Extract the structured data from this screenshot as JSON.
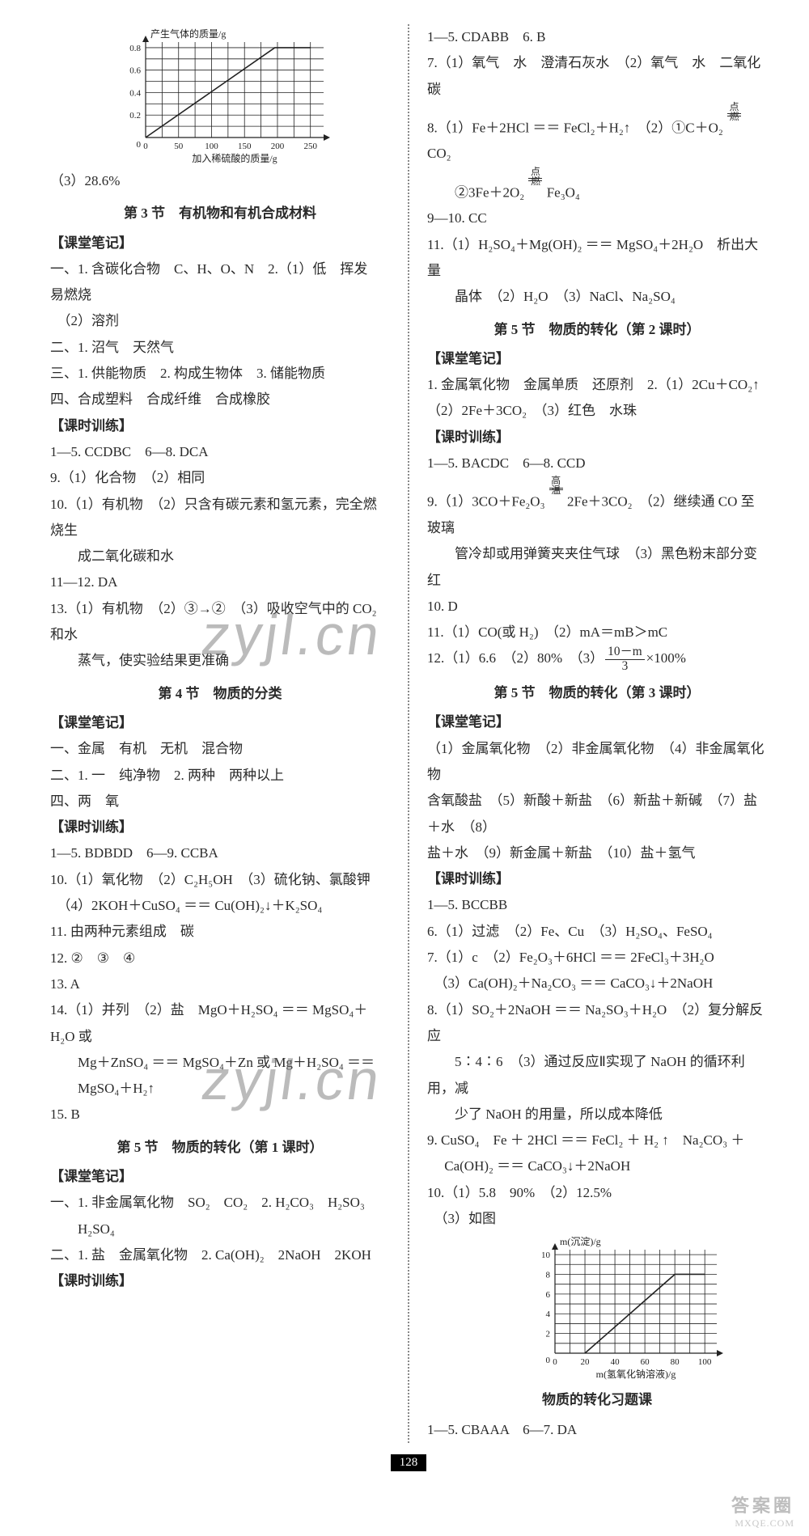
{
  "page_number": "128",
  "watermark_text": "zyjl.cn",
  "footer": {
    "line1": "答案圈",
    "line2": "MXQE.COM"
  },
  "chart_top": {
    "type": "line",
    "x_label": "加入稀硫酸的质量/g",
    "y_label": "产生气体的质量/g",
    "x_ticks": [
      0,
      50,
      100,
      150,
      200,
      250
    ],
    "y_ticks": [
      0,
      0.2,
      0.4,
      0.6,
      0.8
    ],
    "xlim": [
      0,
      270
    ],
    "ylim": [
      0,
      0.85
    ],
    "grid_step_x": 25,
    "grid_step_y": 0.1,
    "points": [
      [
        0,
        0
      ],
      [
        196,
        0.8
      ],
      [
        250,
        0.8
      ]
    ],
    "line_color": "#222222",
    "grid_color": "#222222",
    "bg": "#ffffff",
    "font_size_ticks": 11,
    "font_size_label": 12
  },
  "chart_bottom": {
    "type": "line",
    "x_label": "m(氢氧化钠溶液)/g",
    "y_label": "m(沉淀)/g",
    "x_ticks": [
      0,
      20,
      40,
      60,
      80,
      100
    ],
    "y_ticks": [
      0,
      2,
      4,
      6,
      8,
      10
    ],
    "xlim": [
      0,
      108
    ],
    "ylim": [
      0,
      10.5
    ],
    "grid_step_x": 10,
    "grid_step_y": 1,
    "points": [
      [
        20,
        0
      ],
      [
        80,
        8
      ],
      [
        100,
        8
      ]
    ],
    "line_color": "#222222",
    "grid_color": "#222222",
    "bg": "#ffffff",
    "font_size_ticks": 11,
    "font_size_label": 12
  },
  "left": {
    "after_chart_line": "（3）28.6%",
    "s3_title": "第 3 节　有机物和有机合成材料",
    "notes_tag": "【课堂笔记】",
    "train_tag": "【课时训练】",
    "s3_notes": [
      "一、1. 含碳化合物　C、H、O、N　2.（1）低　挥发　易燃烧",
      "　（2）溶剂",
      "二、1. 沼气　天然气",
      "三、1. 供能物质　2. 构成生物体　3. 储能物质",
      "四、合成塑料　合成纤维　合成橡胶"
    ],
    "s3_train": [
      "1—5. CCDBC　6—8. DCA",
      "9.（1）化合物　（2）相同",
      "10.（1）有机物　（2）只含有碳元素和氢元素，完全燃烧生",
      "　　成二氧化碳和水",
      "11—12. DA",
      "13.（1）有机物　（2）③→②　（3）吸收空气中的 CO₂ 和水",
      "　　蒸气，使实验结果更准确"
    ],
    "s4_title": "第 4 节　物质的分类",
    "s4_notes": [
      "一、金属　有机　无机　混合物",
      "二、1. 一　纯净物　2. 两种　两种以上",
      "四、两　氧"
    ],
    "s4_train": [
      "1—5. BDBDD　6—9. CCBA",
      "10.（1）氧化物　（2）C₂H₅OH　（3）硫化钠、氯酸钾",
      "　（4）2KOH＋CuSO₄ ＝＝ Cu(OH)₂↓＋K₂SO₄",
      "11. 由两种元素组成　碳",
      "12. ②　③　④",
      "13. A",
      "14.（1）并列　（2）盐　MgO＋H₂SO₄ ＝＝ MgSO₄＋H₂O 或",
      "　　Mg＋ZnSO₄ ＝＝ MgSO₄＋Zn 或 Mg＋H₂SO₄ ＝＝",
      "　　MgSO₄＋H₂↑",
      "15. B"
    ],
    "s5a_title": "第 5 节　物质的转化（第 1 课时）",
    "s5a_notes": [
      "一、1. 非金属氧化物　SO₂　CO₂　2. H₂CO₃　H₂SO₃",
      "　　H₂SO₄",
      "二、1. 盐　金属氧化物　2. Ca(OH)₂　2NaOH　2KOH"
    ]
  },
  "right": {
    "pre": [
      "1—5. CDABB　6. B",
      "7.（1）氧气　水　澄清石灰水　（2）氧气　水　二氧化碳"
    ],
    "q8_prefix": "8.（1）Fe＋2HCl ＝＝ FeCl₂＋H₂↑　（2）①C＋O₂ ",
    "q8_cond1_top": "点燃",
    "q8_cond1_right": " CO₂",
    "q8_line2_pre": "　　②3Fe＋2O₂ ",
    "q8_cond2_top": "点燃",
    "q8_line2_post": " Fe₃O₄",
    "q910": "9—10. CC",
    "q11": [
      "11.（1）H₂SO₄＋Mg(OH)₂ ＝＝ MgSO₄＋2H₂O　析出大量",
      "　　晶体　（2）H₂O　（3）NaCl、Na₂SO₄"
    ],
    "s5b_title": "第 5 节　物质的转化（第 2 课时）",
    "s5b_notes": [
      "1. 金属氧化物　金属单质　还原剂　2.（1）2Cu＋CO₂↑",
      "（2）2Fe＋3CO₂　（3）红色　水珠"
    ],
    "s5b_train_head": "1—5. BACDC　6—8. CCD",
    "q9_pre": "9.（1）3CO＋Fe₂O₃ ",
    "q9_top": "高温",
    "q9_post": " 2Fe＋3CO₂　（2）继续通 CO 至玻璃",
    "q9_line2": "　　管冷却或用弹簧夹夹住气球　（3）黑色粉末部分变红",
    "q10": "10. D",
    "q11b": "11.（1）CO(或 H₂)　（2）mA＝mB＞mC",
    "q12_pre": "12.（1）6.6　（2）80%　（3）",
    "q12_frac_n": "10－m",
    "q12_frac_d": "3",
    "q12_post": "×100%",
    "s5c_title": "第 5 节　物质的转化（第 3 课时）",
    "s5c_notes": [
      "（1）金属氧化物　（2）非金属氧化物　（4）非金属氧化物",
      "含氧酸盐　（5）新酸＋新盐　（6）新盐＋新碱　（7）盐＋水　（8）",
      "盐＋水　（9）新金属＋新盐　（10）盐＋氢气"
    ],
    "s5c_train": [
      "1—5. BCCBB",
      "6.（1）过滤　（2）Fe、Cu　（3）H₂SO₄、FeSO₄",
      "7.（1）c　（2）Fe₂O₃＋6HCl ＝＝ 2FeCl₃＋3H₂O",
      "　（3）Ca(OH)₂＋Na₂CO₃ ＝＝ CaCO₃↓＋2NaOH",
      "8.（1）SO₂＋2NaOH ＝＝ Na₂SO₃＋H₂O　（2）复分解反应",
      "　　5∶4∶6　（3）通过反应Ⅱ实现了 NaOH 的循环利用，减",
      "　　少了 NaOH 的用量，所以成本降低",
      "9. CuSO₄　Fe ＋ 2HCl ＝＝ FeCl₂ ＋ H₂ ↑　Na₂CO₃ ＋",
      "　 Ca(OH)₂ ＝＝ CaCO₃↓＋2NaOH",
      "10.（1）5.8　90%　（2）12.5%",
      "　（3）如图"
    ],
    "s5d_title": "物质的转化习题课",
    "s5d_line": "1—5. CBAAA　6—7. DA"
  }
}
